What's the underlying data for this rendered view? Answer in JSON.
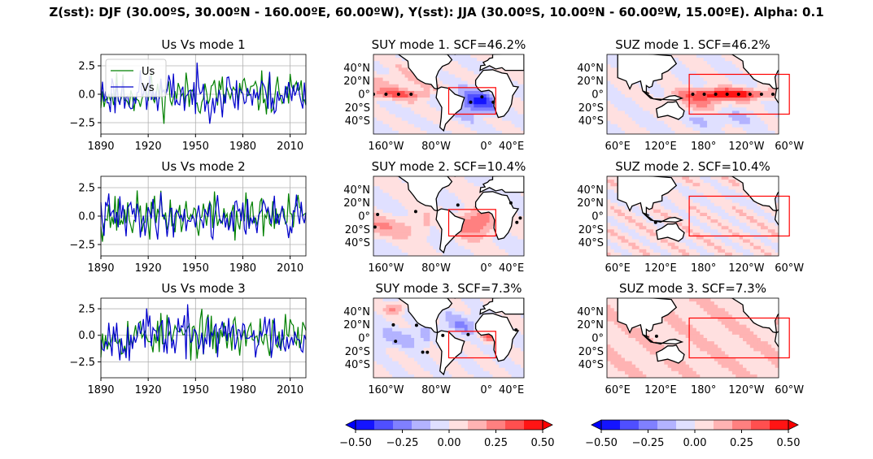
{
  "suptitle": "Z(sst): DJF (30.00ºS, 30.00ºN - 160.00ºE, 60.00ºW), Y(sst): JJA (30.00ºS, 10.00ºN - 60.00ºW, 15.00ºE). Alpha: 0.1",
  "colors": {
    "us_series": "#008000",
    "vs_series": "#0000cc",
    "grid": "#b0b0b0",
    "box": "#ff0000",
    "colormap": [
      "#1414ff",
      "#4f4fff",
      "#8080ff",
      "#b3b3ff",
      "#e0e0ff",
      "#ffe0e0",
      "#ffb3b3",
      "#ff8080",
      "#ff4f4f",
      "#ff1414"
    ]
  },
  "chart_data": [
    {
      "type": "line",
      "title": "Us Vs mode 1",
      "xticks": [
        "1890",
        "1920",
        "1950",
        "1980",
        "2010"
      ],
      "xlim": [
        1890,
        2020
      ],
      "yticks": [
        "2.5",
        "0.0",
        "−2.5"
      ],
      "ylim": [
        -3.5,
        3.5
      ],
      "grid": true,
      "legend": {
        "placement": "upper-left",
        "entries": [
          "Us",
          "Vs"
        ]
      },
      "series": [
        {
          "name": "Us",
          "color": "green",
          "seed": 11,
          "amplitude": 1.0
        },
        {
          "name": "Vs",
          "color": "blue",
          "seed": 23,
          "amplitude": 1.05
        }
      ]
    },
    {
      "type": "line",
      "title": "Us Vs mode 2",
      "xticks": [
        "1890",
        "1920",
        "1950",
        "1980",
        "2010"
      ],
      "xlim": [
        1890,
        2020
      ],
      "yticks": [
        "2.5",
        "0.0",
        "−2.5"
      ],
      "ylim": [
        -3.5,
        3.5
      ],
      "grid": true,
      "series": [
        {
          "name": "Us",
          "color": "green",
          "seed": 37,
          "amplitude": 1.05
        },
        {
          "name": "Vs",
          "color": "blue",
          "seed": 41,
          "amplitude": 1.0
        }
      ]
    },
    {
      "type": "line",
      "title": "Us Vs mode 3",
      "xticks": [
        "1890",
        "1920",
        "1950",
        "1980",
        "2010"
      ],
      "xlim": [
        1890,
        2020
      ],
      "yticks": [
        "2.5",
        "0.0",
        "−2.5"
      ],
      "ylim": [
        -4.0,
        3.5
      ],
      "grid": true,
      "series": [
        {
          "name": "Us",
          "color": "green",
          "seed": 53,
          "amplitude": 1.05
        },
        {
          "name": "Vs",
          "color": "blue",
          "seed": 67,
          "amplitude": 1.15
        }
      ]
    },
    {
      "type": "heatmap",
      "title": "SUY mode 1. SCF=46.2%",
      "map_region": "Atlantic-centered (160°W–40°E)",
      "xticks": [
        "160°W",
        "80°W",
        "0°",
        "40°E"
      ],
      "yticks": [
        "40°N",
        "20°N",
        "0°",
        "20°S",
        "40°S"
      ],
      "box": "30°S–10°N, 60°W–15°E",
      "pattern": "negative anomaly in tropical South Atlantic, weak positive equatorial Pacific"
    },
    {
      "type": "heatmap",
      "title": "SUZ mode 1. SCF=46.2%",
      "map_region": "Pacific-centered (60°E–60°W)",
      "xticks": [
        "60°E",
        "120°E",
        "180°",
        "120°W",
        "60°W"
      ],
      "yticks": [
        "40°N",
        "20°N",
        "0°",
        "20°S",
        "40°S"
      ],
      "box": "30°S–30°N, 160°E–60°W",
      "pattern": "strong positive (El Niño-like) equatorial Pacific tongue"
    },
    {
      "type": "heatmap",
      "title": "SUY mode 2. SCF=10.4%",
      "map_region": "Atlantic-centered (160°W–40°E)",
      "xticks": [
        "160°W",
        "80°W",
        "0°",
        "40°E"
      ],
      "yticks": [
        "40°N",
        "20°N",
        "0°",
        "20°S",
        "40°S"
      ],
      "box": "30°S–10°N, 60°W–15°E",
      "pattern": "positive anomaly in tropical South Atlantic"
    },
    {
      "type": "heatmap",
      "title": "SUZ mode 2. SCF=10.4%",
      "map_region": "Pacific-centered (60°E–60°W)",
      "xticks": [
        "60°E",
        "120°E",
        "180°",
        "120°W",
        "60°W"
      ],
      "yticks": [
        "40°N",
        "20°N",
        "0°",
        "20°S",
        "40°S"
      ],
      "box": "30°S–30°N, 160°E–60°W",
      "pattern": "weak mixed anomalies"
    },
    {
      "type": "heatmap",
      "title": "SUY mode 3. SCF=7.3%",
      "map_region": "Atlantic-centered (160°W–40°E)",
      "xticks": [
        "160°W",
        "80°W",
        "0°",
        "40°E"
      ],
      "yticks": [
        "40°N",
        "20°N",
        "0°",
        "20°S",
        "40°S"
      ],
      "box": "30°S–10°N, 60°W–15°E",
      "pattern": "positive Gulf of Guinea, negative tropical Pacific and North Atlantic"
    },
    {
      "type": "heatmap",
      "title": "SUZ mode 3. SCF=7.3%",
      "map_region": "Pacific-centered (60°E–60°W)",
      "xticks": [
        "60°E",
        "120°E",
        "180°",
        "120°W",
        "60°W"
      ],
      "yticks": [
        "40°N",
        "20°N",
        "0°",
        "20°S",
        "40°S"
      ],
      "box": "30°S–30°N, 160°E–60°W",
      "pattern": "weak positive anomalies"
    }
  ],
  "colorbars": [
    {
      "vmin": -0.5,
      "vmax": 0.5,
      "ticks": [
        "−0.50",
        "−0.25",
        "0.00",
        "0.25",
        "0.50"
      ],
      "extend": "both"
    },
    {
      "vmin": -0.5,
      "vmax": 0.5,
      "ticks": [
        "−0.50",
        "−0.25",
        "0.00",
        "0.25",
        "0.50"
      ],
      "extend": "both"
    }
  ]
}
